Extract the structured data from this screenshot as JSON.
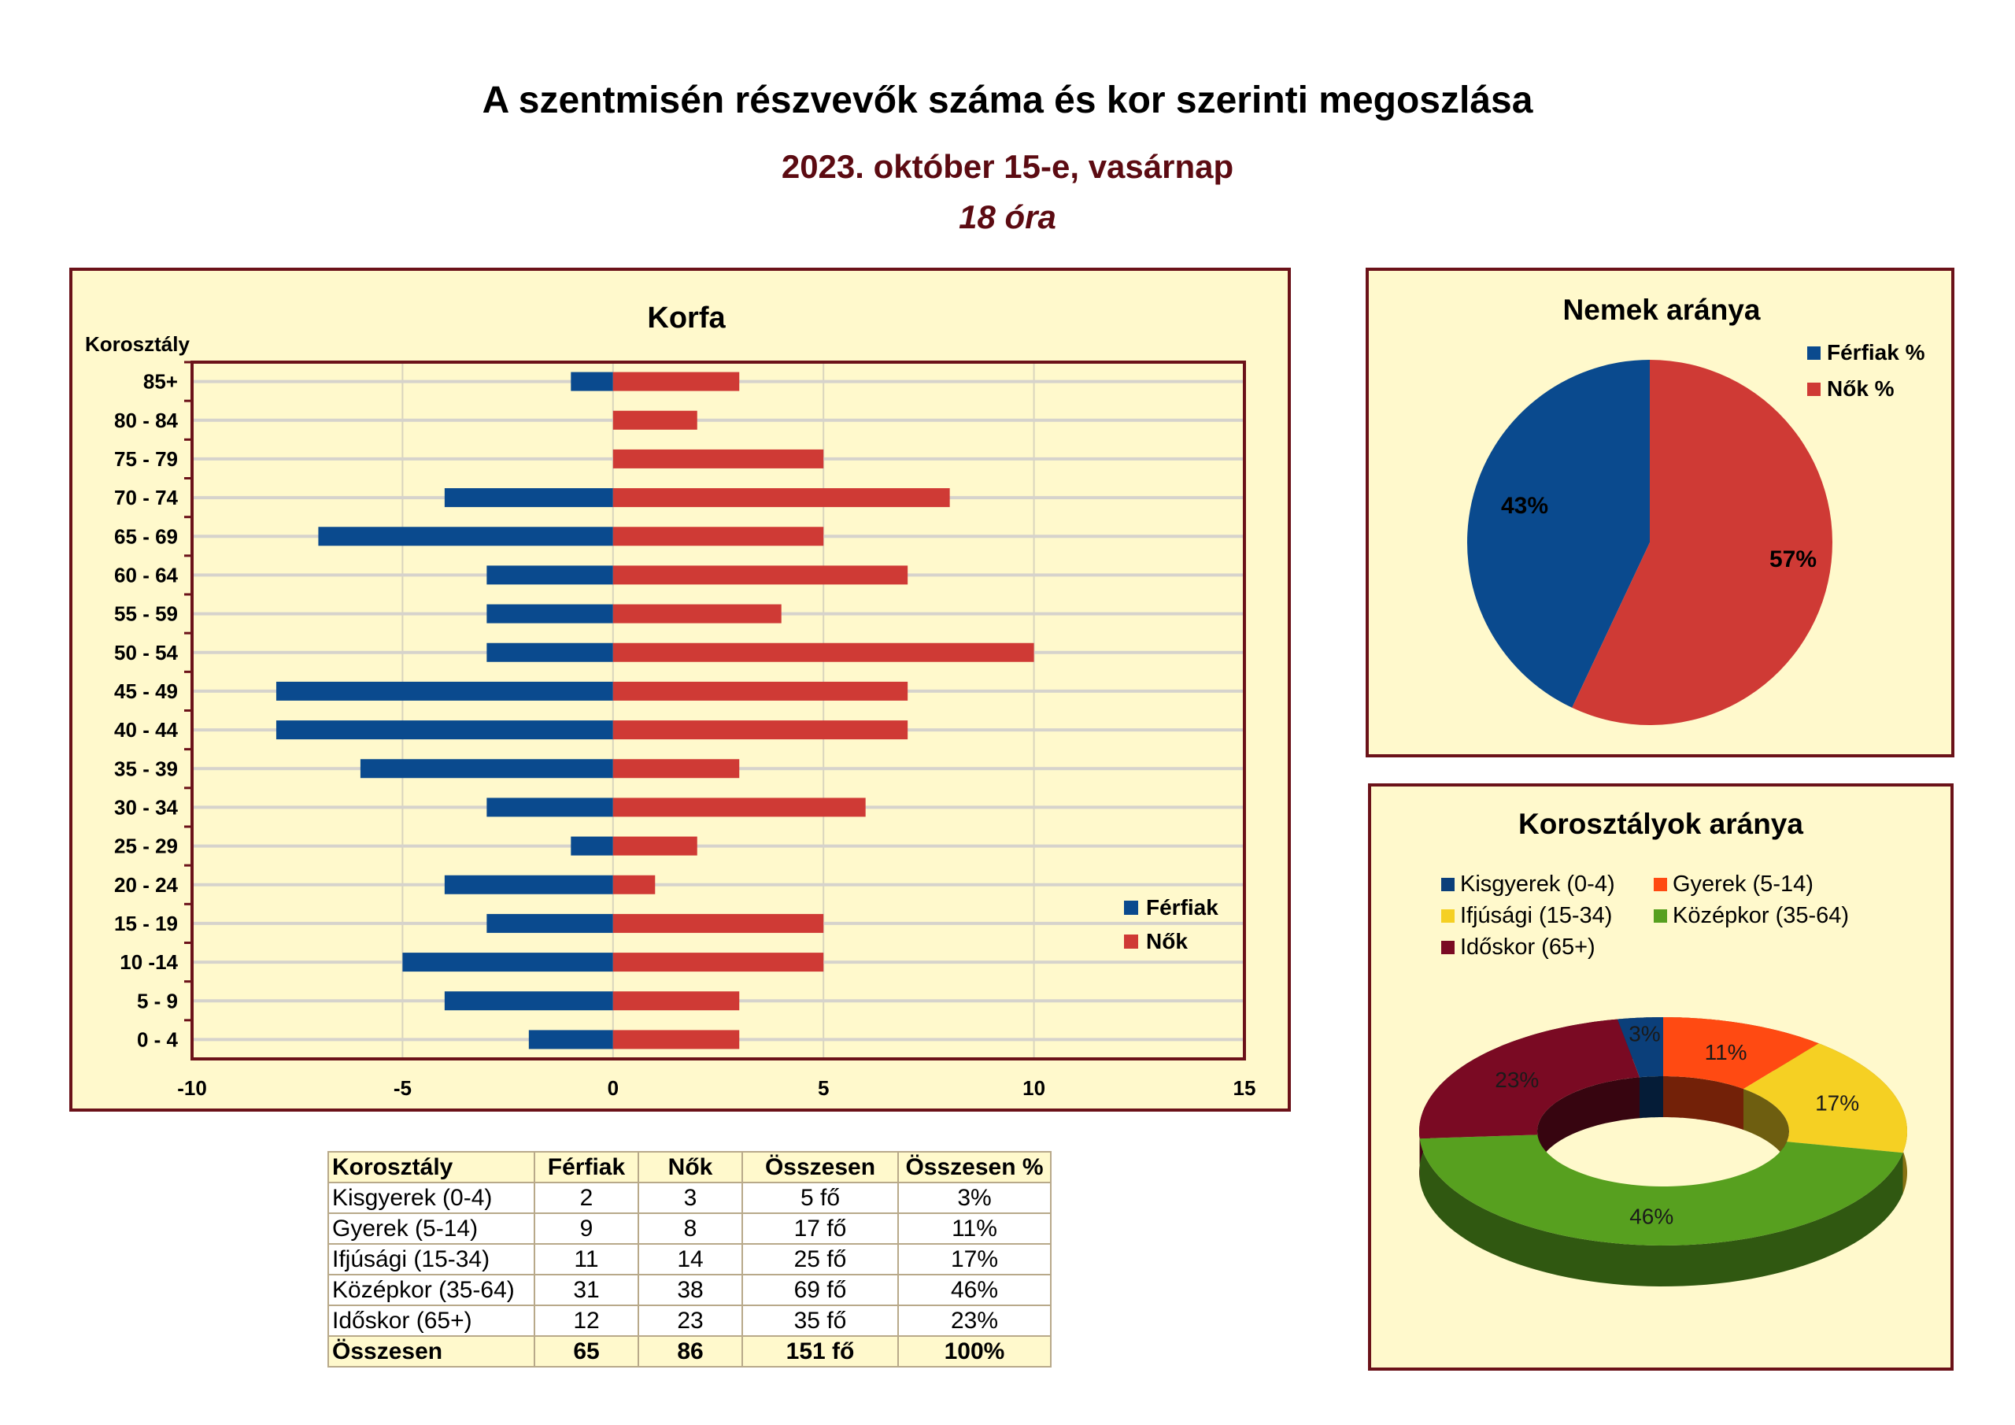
{
  "header": {
    "title": "A szentmisén részvevők száma és kor szerinti megoszlása",
    "subtitle": "2023. október 15-e, vasárnap",
    "subtitle2": "18 óra"
  },
  "colors": {
    "ferfiak": "#0a4a8e",
    "nok": "#cf3a35",
    "panel_bg": "#fff9cc",
    "panel_border": "#6b1219",
    "kisgyerek": "#0b3f7a",
    "gyerek": "#ff4a12",
    "ifjusagi": "#f5d023",
    "kozepkor": "#57a01f",
    "idoskor": "#7a0a23"
  },
  "chart_data": [
    {
      "type": "bar",
      "orientation": "horizontal",
      "title": "Korfa",
      "ylabel": "Korosztály",
      "xlabel": "",
      "categories": [
        "85+",
        "80 - 84",
        "75 - 79",
        "70 - 74",
        "65 - 69",
        "60 - 64",
        "55 - 59",
        "50 - 54",
        "45 - 49",
        "40 - 44",
        "35 - 39",
        "30 - 34",
        "25 - 29",
        "20 - 24",
        "15 - 19",
        "10 -14",
        "5 - 9",
        "0 - 4"
      ],
      "series": [
        {
          "name": "Férfiak",
          "values": [
            -1,
            0,
            0,
            -4,
            -7,
            -3,
            -3,
            -3,
            -8,
            -8,
            -6,
            -3,
            -1,
            -4,
            -3,
            -5,
            -4,
            -2
          ]
        },
        {
          "name": "Nők",
          "values": [
            3,
            2,
            5,
            8,
            5,
            7,
            4,
            10,
            7,
            7,
            3,
            6,
            2,
            1,
            5,
            5,
            3,
            3
          ]
        }
      ],
      "xlim": [
        -10,
        15
      ],
      "xticks": [
        "-10",
        "-5",
        "0",
        "5",
        "10",
        "15"
      ],
      "grid": true,
      "legend": "bottom-right"
    },
    {
      "type": "pie",
      "title": "Nemek aránya",
      "labels": [
        "Férfiak %",
        "Nők %"
      ],
      "values": [
        43,
        57
      ],
      "data_labels": [
        "43%",
        "57%"
      ],
      "legend": "top-right"
    },
    {
      "type": "pie",
      "variant": "donut-3d",
      "title": "Korosztályok aránya",
      "labels": [
        "Kisgyerek (0-4)",
        "Gyerek (5-14)",
        "Ifjúsági (15-34)",
        "Középkor (35-64)",
        "Időskor (65+)"
      ],
      "values": [
        3,
        11,
        17,
        46,
        23
      ],
      "data_labels": [
        "3%",
        "11%",
        "17%",
        "46%",
        "23%"
      ],
      "legend": "top"
    }
  ],
  "table": {
    "headers": [
      "Korosztály",
      "Férfiak",
      "Nők",
      "Összesen",
      "Összesen %"
    ],
    "rows": [
      [
        "Kisgyerek (0-4)",
        "2",
        "3",
        "5 fő",
        "3%"
      ],
      [
        "Gyerek (5-14)",
        "9",
        "8",
        "17 fő",
        "11%"
      ],
      [
        "Ifjúsági (15-34)",
        "11",
        "14",
        "25 fő",
        "17%"
      ],
      [
        "Középkor (35-64)",
        "31",
        "38",
        "69 fő",
        "46%"
      ],
      [
        "Időskor (65+)",
        "12",
        "23",
        "35 fő",
        "23%"
      ]
    ],
    "total": [
      "Összesen",
      "65",
      "86",
      "151 fő",
      "100%"
    ]
  }
}
